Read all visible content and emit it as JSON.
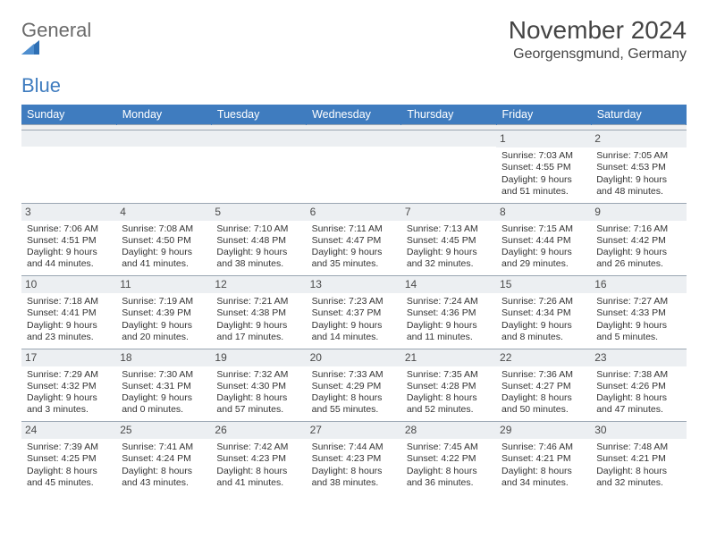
{
  "brand": {
    "general": "General",
    "blue": "Blue"
  },
  "title": {
    "month": "November 2024",
    "location": "Georgensgmund, Germany"
  },
  "colors": {
    "header_bg": "#3f7cbf",
    "header_text": "#ffffff",
    "daynum_bg": "#eceff2",
    "rule": "#9aa6b2",
    "text": "#333333",
    "logo_gray": "#6a6a6a",
    "logo_blue": "#3f7cbf",
    "page_bg": "#ffffff"
  },
  "weekdays": [
    "Sunday",
    "Monday",
    "Tuesday",
    "Wednesday",
    "Thursday",
    "Friday",
    "Saturday"
  ],
  "weeks": [
    [
      {
        "day": "",
        "empty": true
      },
      {
        "day": "",
        "empty": true
      },
      {
        "day": "",
        "empty": true
      },
      {
        "day": "",
        "empty": true
      },
      {
        "day": "",
        "empty": true
      },
      {
        "day": "1",
        "sunrise": "Sunrise: 7:03 AM",
        "sunset": "Sunset: 4:55 PM",
        "daylight1": "Daylight: 9 hours",
        "daylight2": "and 51 minutes."
      },
      {
        "day": "2",
        "sunrise": "Sunrise: 7:05 AM",
        "sunset": "Sunset: 4:53 PM",
        "daylight1": "Daylight: 9 hours",
        "daylight2": "and 48 minutes."
      }
    ],
    [
      {
        "day": "3",
        "sunrise": "Sunrise: 7:06 AM",
        "sunset": "Sunset: 4:51 PM",
        "daylight1": "Daylight: 9 hours",
        "daylight2": "and 44 minutes."
      },
      {
        "day": "4",
        "sunrise": "Sunrise: 7:08 AM",
        "sunset": "Sunset: 4:50 PM",
        "daylight1": "Daylight: 9 hours",
        "daylight2": "and 41 minutes."
      },
      {
        "day": "5",
        "sunrise": "Sunrise: 7:10 AM",
        "sunset": "Sunset: 4:48 PM",
        "daylight1": "Daylight: 9 hours",
        "daylight2": "and 38 minutes."
      },
      {
        "day": "6",
        "sunrise": "Sunrise: 7:11 AM",
        "sunset": "Sunset: 4:47 PM",
        "daylight1": "Daylight: 9 hours",
        "daylight2": "and 35 minutes."
      },
      {
        "day": "7",
        "sunrise": "Sunrise: 7:13 AM",
        "sunset": "Sunset: 4:45 PM",
        "daylight1": "Daylight: 9 hours",
        "daylight2": "and 32 minutes."
      },
      {
        "day": "8",
        "sunrise": "Sunrise: 7:15 AM",
        "sunset": "Sunset: 4:44 PM",
        "daylight1": "Daylight: 9 hours",
        "daylight2": "and 29 minutes."
      },
      {
        "day": "9",
        "sunrise": "Sunrise: 7:16 AM",
        "sunset": "Sunset: 4:42 PM",
        "daylight1": "Daylight: 9 hours",
        "daylight2": "and 26 minutes."
      }
    ],
    [
      {
        "day": "10",
        "sunrise": "Sunrise: 7:18 AM",
        "sunset": "Sunset: 4:41 PM",
        "daylight1": "Daylight: 9 hours",
        "daylight2": "and 23 minutes."
      },
      {
        "day": "11",
        "sunrise": "Sunrise: 7:19 AM",
        "sunset": "Sunset: 4:39 PM",
        "daylight1": "Daylight: 9 hours",
        "daylight2": "and 20 minutes."
      },
      {
        "day": "12",
        "sunrise": "Sunrise: 7:21 AM",
        "sunset": "Sunset: 4:38 PM",
        "daylight1": "Daylight: 9 hours",
        "daylight2": "and 17 minutes."
      },
      {
        "day": "13",
        "sunrise": "Sunrise: 7:23 AM",
        "sunset": "Sunset: 4:37 PM",
        "daylight1": "Daylight: 9 hours",
        "daylight2": "and 14 minutes."
      },
      {
        "day": "14",
        "sunrise": "Sunrise: 7:24 AM",
        "sunset": "Sunset: 4:36 PM",
        "daylight1": "Daylight: 9 hours",
        "daylight2": "and 11 minutes."
      },
      {
        "day": "15",
        "sunrise": "Sunrise: 7:26 AM",
        "sunset": "Sunset: 4:34 PM",
        "daylight1": "Daylight: 9 hours",
        "daylight2": "and 8 minutes."
      },
      {
        "day": "16",
        "sunrise": "Sunrise: 7:27 AM",
        "sunset": "Sunset: 4:33 PM",
        "daylight1": "Daylight: 9 hours",
        "daylight2": "and 5 minutes."
      }
    ],
    [
      {
        "day": "17",
        "sunrise": "Sunrise: 7:29 AM",
        "sunset": "Sunset: 4:32 PM",
        "daylight1": "Daylight: 9 hours",
        "daylight2": "and 3 minutes."
      },
      {
        "day": "18",
        "sunrise": "Sunrise: 7:30 AM",
        "sunset": "Sunset: 4:31 PM",
        "daylight1": "Daylight: 9 hours",
        "daylight2": "and 0 minutes."
      },
      {
        "day": "19",
        "sunrise": "Sunrise: 7:32 AM",
        "sunset": "Sunset: 4:30 PM",
        "daylight1": "Daylight: 8 hours",
        "daylight2": "and 57 minutes."
      },
      {
        "day": "20",
        "sunrise": "Sunrise: 7:33 AM",
        "sunset": "Sunset: 4:29 PM",
        "daylight1": "Daylight: 8 hours",
        "daylight2": "and 55 minutes."
      },
      {
        "day": "21",
        "sunrise": "Sunrise: 7:35 AM",
        "sunset": "Sunset: 4:28 PM",
        "daylight1": "Daylight: 8 hours",
        "daylight2": "and 52 minutes."
      },
      {
        "day": "22",
        "sunrise": "Sunrise: 7:36 AM",
        "sunset": "Sunset: 4:27 PM",
        "daylight1": "Daylight: 8 hours",
        "daylight2": "and 50 minutes."
      },
      {
        "day": "23",
        "sunrise": "Sunrise: 7:38 AM",
        "sunset": "Sunset: 4:26 PM",
        "daylight1": "Daylight: 8 hours",
        "daylight2": "and 47 minutes."
      }
    ],
    [
      {
        "day": "24",
        "sunrise": "Sunrise: 7:39 AM",
        "sunset": "Sunset: 4:25 PM",
        "daylight1": "Daylight: 8 hours",
        "daylight2": "and 45 minutes."
      },
      {
        "day": "25",
        "sunrise": "Sunrise: 7:41 AM",
        "sunset": "Sunset: 4:24 PM",
        "daylight1": "Daylight: 8 hours",
        "daylight2": "and 43 minutes."
      },
      {
        "day": "26",
        "sunrise": "Sunrise: 7:42 AM",
        "sunset": "Sunset: 4:23 PM",
        "daylight1": "Daylight: 8 hours",
        "daylight2": "and 41 minutes."
      },
      {
        "day": "27",
        "sunrise": "Sunrise: 7:44 AM",
        "sunset": "Sunset: 4:23 PM",
        "daylight1": "Daylight: 8 hours",
        "daylight2": "and 38 minutes."
      },
      {
        "day": "28",
        "sunrise": "Sunrise: 7:45 AM",
        "sunset": "Sunset: 4:22 PM",
        "daylight1": "Daylight: 8 hours",
        "daylight2": "and 36 minutes."
      },
      {
        "day": "29",
        "sunrise": "Sunrise: 7:46 AM",
        "sunset": "Sunset: 4:21 PM",
        "daylight1": "Daylight: 8 hours",
        "daylight2": "and 34 minutes."
      },
      {
        "day": "30",
        "sunrise": "Sunrise: 7:48 AM",
        "sunset": "Sunset: 4:21 PM",
        "daylight1": "Daylight: 8 hours",
        "daylight2": "and 32 minutes."
      }
    ]
  ]
}
